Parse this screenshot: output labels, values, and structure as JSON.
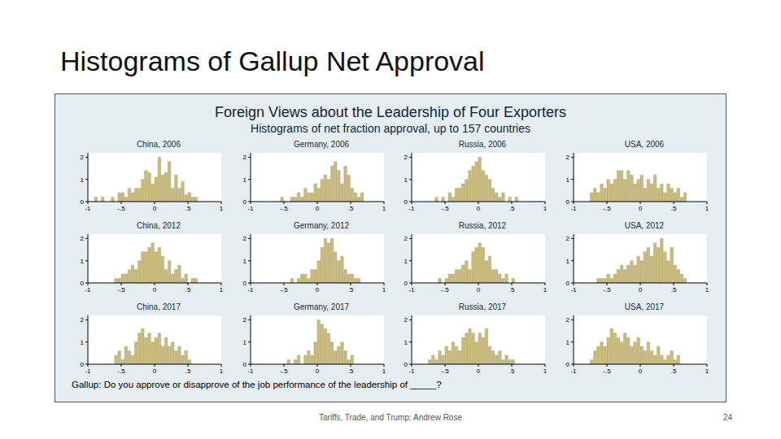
{
  "slide": {
    "title": "Histograms of Gallup Net Approval",
    "footer": "Tariffs, Trade, and Trump: Andrew Rose",
    "page": 24
  },
  "figure": {
    "title": "Foreign Views about the Leadership of Four Exporters",
    "subtitle": "Histograms of net fraction approval, up to 157 countries",
    "note": "Gallup: Do you approve or disapprove of the job performance of the leadership of _____?"
  },
  "chart_data": [
    {
      "type": "histogram",
      "title": "China, 2006",
      "bins": [
        -1,
        -0.95,
        -0.9,
        -0.85,
        -0.8,
        -0.75,
        -0.7,
        -0.65,
        -0.6,
        -0.55,
        -0.5,
        -0.45,
        -0.4,
        -0.35,
        -0.3,
        -0.25,
        -0.2,
        -0.15,
        -0.1,
        -0.05,
        0,
        0.05,
        0.1,
        0.15,
        0.2,
        0.25,
        0.3,
        0.35,
        0.4,
        0.45,
        0.5,
        0.55,
        0.6,
        0.65,
        0.7,
        0.75,
        0.8,
        0.85,
        0.9,
        0.95,
        1
      ],
      "counts": [
        0,
        0,
        0.2,
        0,
        0.2,
        0,
        0,
        0.2,
        0,
        0.4,
        0.4,
        0.2,
        0.6,
        0.4,
        0.6,
        0.6,
        1.0,
        1.4,
        1.3,
        0.8,
        1.1,
        2.0,
        1.2,
        1.3,
        1.8,
        0.6,
        1.2,
        0.6,
        0.9,
        0.3,
        0.4,
        0.2,
        0.2,
        0,
        0,
        0,
        0,
        0,
        0,
        0
      ],
      "color": "#c9bb7c",
      "xlim": [
        -1,
        1
      ],
      "xticks": [
        -1,
        {
          "value": -0.5,
          "label": "-.5"
        },
        0,
        {
          "value": 0.5,
          "label": ".5"
        },
        1
      ],
      "ylim": [
        0,
        2.2
      ],
      "yticks": [
        0,
        1,
        2
      ]
    },
    {
      "type": "histogram",
      "title": "Germany, 2006",
      "bins": [
        -1,
        -0.95,
        -0.9,
        -0.85,
        -0.8,
        -0.75,
        -0.7,
        -0.65,
        -0.6,
        -0.55,
        -0.5,
        -0.45,
        -0.4,
        -0.35,
        -0.3,
        -0.25,
        -0.2,
        -0.15,
        -0.1,
        -0.05,
        0,
        0.05,
        0.1,
        0.15,
        0.2,
        0.25,
        0.3,
        0.35,
        0.4,
        0.45,
        0.5,
        0.55,
        0.6,
        0.65,
        0.7,
        0.75,
        0.8,
        0.85,
        0.9,
        0.95,
        1
      ],
      "counts": [
        0,
        0,
        0,
        0,
        0,
        0,
        0,
        0,
        0,
        0.2,
        0,
        0,
        0.2,
        0.2,
        0.4,
        0.2,
        0.6,
        0.4,
        0.4,
        0.8,
        0.6,
        1.0,
        1.2,
        1.0,
        1.6,
        1.8,
        1.4,
        0.8,
        1.6,
        1.2,
        0.6,
        0.4,
        0.2,
        0.4,
        0,
        0,
        0,
        0,
        0,
        0
      ],
      "color": "#c9bb7c",
      "xlim": [
        -1,
        1
      ],
      "xticks": [
        -1,
        {
          "value": -0.5,
          "label": "-.5"
        },
        0,
        {
          "value": 0.5,
          "label": ".5"
        },
        1
      ],
      "ylim": [
        0,
        2.2
      ],
      "yticks": [
        0,
        1,
        2
      ]
    },
    {
      "type": "histogram",
      "title": "Russia, 2006",
      "bins": [
        -1,
        -0.95,
        -0.9,
        -0.85,
        -0.8,
        -0.75,
        -0.7,
        -0.65,
        -0.6,
        -0.55,
        -0.5,
        -0.45,
        -0.4,
        -0.35,
        -0.3,
        -0.25,
        -0.2,
        -0.15,
        -0.1,
        -0.05,
        0,
        0.05,
        0.1,
        0.15,
        0.2,
        0.25,
        0.3,
        0.35,
        0.4,
        0.45,
        0.5,
        0.55,
        0.6,
        0.65,
        0.7,
        0.75,
        0.8,
        0.85,
        0.9,
        0.95,
        1
      ],
      "counts": [
        0,
        0,
        0,
        0,
        0,
        0,
        0,
        0.2,
        0,
        0.2,
        0,
        0.4,
        0.2,
        0.6,
        0.6,
        0.8,
        1.0,
        1.4,
        1.6,
        1.8,
        2.0,
        1.4,
        1.2,
        1.0,
        0.6,
        0.4,
        0.2,
        0.4,
        0,
        0.2,
        0,
        0.2,
        0,
        0,
        0,
        0,
        0,
        0,
        0,
        0
      ],
      "color": "#c9bb7c",
      "xlim": [
        -1,
        1
      ],
      "xticks": [
        -1,
        {
          "value": -0.5,
          "label": "-.5"
        },
        0,
        {
          "value": 0.5,
          "label": ".5"
        },
        1
      ],
      "ylim": [
        0,
        2.2
      ],
      "yticks": [
        0,
        1,
        2
      ]
    },
    {
      "type": "histogram",
      "title": "USA, 2006",
      "bins": [
        -1,
        -0.95,
        -0.9,
        -0.85,
        -0.8,
        -0.75,
        -0.7,
        -0.65,
        -0.6,
        -0.55,
        -0.5,
        -0.45,
        -0.4,
        -0.35,
        -0.3,
        -0.25,
        -0.2,
        -0.15,
        -0.1,
        -0.05,
        0,
        0.05,
        0.1,
        0.15,
        0.2,
        0.25,
        0.3,
        0.35,
        0.4,
        0.45,
        0.5,
        0.55,
        0.6,
        0.65,
        0.7,
        0.75,
        0.8,
        0.85,
        0.9,
        0.95,
        1
      ],
      "counts": [
        0,
        0,
        0,
        0,
        0,
        0.4,
        0.6,
        0.4,
        0.8,
        0.6,
        1.0,
        0.8,
        1.0,
        1.4,
        1.4,
        1.0,
        1.4,
        1.2,
        0.8,
        1.0,
        1.2,
        0.6,
        1.0,
        0.8,
        1.2,
        0.6,
        0.8,
        0.4,
        0.8,
        0.6,
        0.4,
        0.6,
        0.2,
        0.4,
        0,
        0,
        0,
        0,
        0,
        0
      ],
      "color": "#c9bb7c",
      "xlim": [
        -1,
        1
      ],
      "xticks": [
        -1,
        {
          "value": -0.5,
          "label": "-.5"
        },
        0,
        {
          "value": 0.5,
          "label": ".5"
        },
        1
      ],
      "ylim": [
        0,
        2.2
      ],
      "yticks": [
        0,
        1,
        2
      ]
    },
    {
      "type": "histogram",
      "title": "China, 2012",
      "bins": [
        -1,
        -0.95,
        -0.9,
        -0.85,
        -0.8,
        -0.75,
        -0.7,
        -0.65,
        -0.6,
        -0.55,
        -0.5,
        -0.45,
        -0.4,
        -0.35,
        -0.3,
        -0.25,
        -0.2,
        -0.15,
        -0.1,
        -0.05,
        0,
        0.05,
        0.1,
        0.15,
        0.2,
        0.25,
        0.3,
        0.35,
        0.4,
        0.45,
        0.5,
        0.55,
        0.6,
        0.65,
        0.7,
        0.75,
        0.8,
        0.85,
        0.9,
        0.95,
        1
      ],
      "counts": [
        0,
        0,
        0,
        0,
        0,
        0,
        0,
        0,
        0.2,
        0.2,
        0.4,
        0.4,
        0.6,
        0.8,
        0.6,
        1.0,
        1.4,
        1.4,
        1.6,
        1.8,
        1.4,
        1.6,
        1.2,
        0.6,
        1.0,
        0.4,
        0.6,
        0.8,
        0.2,
        0.4,
        0,
        0.2,
        0.2,
        0,
        0,
        0,
        0,
        0,
        0,
        0
      ],
      "color": "#c9bb7c",
      "xlim": [
        -1,
        1
      ],
      "xticks": [
        -1,
        {
          "value": -0.5,
          "label": "-.5"
        },
        0,
        {
          "value": 0.5,
          "label": ".5"
        },
        1
      ],
      "ylim": [
        0,
        2.2
      ],
      "yticks": [
        0,
        1,
        2
      ]
    },
    {
      "type": "histogram",
      "title": "Germany, 2012",
      "bins": [
        -1,
        -0.95,
        -0.9,
        -0.85,
        -0.8,
        -0.75,
        -0.7,
        -0.65,
        -0.6,
        -0.55,
        -0.5,
        -0.45,
        -0.4,
        -0.35,
        -0.3,
        -0.25,
        -0.2,
        -0.15,
        -0.1,
        -0.05,
        0,
        0.05,
        0.1,
        0.15,
        0.2,
        0.25,
        0.3,
        0.35,
        0.4,
        0.45,
        0.5,
        0.55,
        0.6,
        0.65,
        0.7,
        0.75,
        0.8,
        0.85,
        0.9,
        0.95,
        1
      ],
      "counts": [
        0,
        0,
        0,
        0,
        0,
        0,
        0,
        0,
        0,
        0,
        0,
        0,
        0.2,
        0,
        0.2,
        0.4,
        0.4,
        0.2,
        0.6,
        0.6,
        1.0,
        1.6,
        2.0,
        1.8,
        2.0,
        1.4,
        1.0,
        1.2,
        0.6,
        0.4,
        0.4,
        0.2,
        0.2,
        0,
        0,
        0,
        0,
        0,
        0,
        0
      ],
      "color": "#c9bb7c",
      "xlim": [
        -1,
        1
      ],
      "xticks": [
        -1,
        {
          "value": -0.5,
          "label": "-.5"
        },
        0,
        {
          "value": 0.5,
          "label": ".5"
        },
        1
      ],
      "ylim": [
        0,
        2.2
      ],
      "yticks": [
        0,
        1,
        2
      ]
    },
    {
      "type": "histogram",
      "title": "Russia, 2012",
      "bins": [
        -1,
        -0.95,
        -0.9,
        -0.85,
        -0.8,
        -0.75,
        -0.7,
        -0.65,
        -0.6,
        -0.55,
        -0.5,
        -0.45,
        -0.4,
        -0.35,
        -0.3,
        -0.25,
        -0.2,
        -0.15,
        -0.1,
        -0.05,
        0,
        0.05,
        0.1,
        0.15,
        0.2,
        0.25,
        0.3,
        0.35,
        0.4,
        0.45,
        0.5,
        0.55,
        0.6,
        0.65,
        0.7,
        0.75,
        0.8,
        0.85,
        0.9,
        0.95,
        1
      ],
      "counts": [
        0,
        0,
        0,
        0,
        0,
        0,
        0,
        0,
        0.2,
        0,
        0.2,
        0.4,
        0.4,
        0.6,
        0.6,
        0.8,
        1.0,
        0.6,
        1.4,
        1.6,
        1.8,
        1.6,
        1.0,
        1.2,
        0.6,
        0.6,
        0.4,
        0.2,
        0.4,
        0,
        0.2,
        0,
        0,
        0,
        0,
        0,
        0,
        0,
        0,
        0
      ],
      "color": "#c9bb7c",
      "xlim": [
        -1,
        1
      ],
      "xticks": [
        -1,
        {
          "value": -0.5,
          "label": "-.5"
        },
        0,
        {
          "value": 0.5,
          "label": ".5"
        },
        1
      ],
      "ylim": [
        0,
        2.2
      ],
      "yticks": [
        0,
        1,
        2
      ]
    },
    {
      "type": "histogram",
      "title": "USA, 2012",
      "bins": [
        -1,
        -0.95,
        -0.9,
        -0.85,
        -0.8,
        -0.75,
        -0.7,
        -0.65,
        -0.6,
        -0.55,
        -0.5,
        -0.45,
        -0.4,
        -0.35,
        -0.3,
        -0.25,
        -0.2,
        -0.15,
        -0.1,
        -0.05,
        0,
        0.05,
        0.1,
        0.15,
        0.2,
        0.25,
        0.3,
        0.35,
        0.4,
        0.45,
        0.5,
        0.55,
        0.6,
        0.65,
        0.7,
        0.75,
        0.8,
        0.85,
        0.9,
        0.95,
        1
      ],
      "counts": [
        0,
        0,
        0,
        0,
        0,
        0,
        0,
        0.2,
        0.2,
        0.2,
        0.4,
        0.2,
        0.4,
        0.6,
        0.8,
        0.6,
        0.8,
        1.0,
        0.8,
        1.2,
        1.0,
        1.4,
        1.6,
        1.2,
        1.8,
        1.6,
        2.0,
        1.4,
        1.0,
        1.6,
        0.8,
        0.6,
        0.4,
        0.2,
        0,
        0,
        0,
        0,
        0,
        0
      ],
      "color": "#c9bb7c",
      "xlim": [
        -1,
        1
      ],
      "xticks": [
        -1,
        {
          "value": -0.5,
          "label": "-.5"
        },
        0,
        {
          "value": 0.5,
          "label": ".5"
        },
        1
      ],
      "ylim": [
        0,
        2.2
      ],
      "yticks": [
        0,
        1,
        2
      ]
    },
    {
      "type": "histogram",
      "title": "China, 2017",
      "bins": [
        -1,
        -0.95,
        -0.9,
        -0.85,
        -0.8,
        -0.75,
        -0.7,
        -0.65,
        -0.6,
        -0.55,
        -0.5,
        -0.45,
        -0.4,
        -0.35,
        -0.3,
        -0.25,
        -0.2,
        -0.15,
        -0.1,
        -0.05,
        0,
        0.05,
        0.1,
        0.15,
        0.2,
        0.25,
        0.3,
        0.35,
        0.4,
        0.45,
        0.5,
        0.55,
        0.6,
        0.65,
        0.7,
        0.75,
        0.8,
        0.85,
        0.9,
        0.95,
        1
      ],
      "counts": [
        0,
        0,
        0,
        0,
        0,
        0,
        0,
        0,
        0.4,
        0.6,
        0.2,
        0.8,
        0.6,
        0.4,
        1.0,
        1.4,
        1.6,
        1.2,
        1.4,
        1.0,
        1.2,
        1.4,
        0.8,
        1.2,
        0.8,
        1.0,
        0.6,
        0.8,
        0.4,
        0.6,
        0.2,
        0,
        0,
        0,
        0,
        0,
        0,
        0,
        0,
        0
      ],
      "color": "#c9bb7c",
      "xlim": [
        -1,
        1
      ],
      "xticks": [
        -1,
        {
          "value": -0.5,
          "label": "-.5"
        },
        0,
        {
          "value": 0.5,
          "label": ".5"
        },
        1
      ],
      "ylim": [
        0,
        2.2
      ],
      "yticks": [
        0,
        1,
        2
      ]
    },
    {
      "type": "histogram",
      "title": "Germany, 2017",
      "bins": [
        -1,
        -0.95,
        -0.9,
        -0.85,
        -0.8,
        -0.75,
        -0.7,
        -0.65,
        -0.6,
        -0.55,
        -0.5,
        -0.45,
        -0.4,
        -0.35,
        -0.3,
        -0.25,
        -0.2,
        -0.15,
        -0.1,
        -0.05,
        0,
        0.05,
        0.1,
        0.15,
        0.2,
        0.25,
        0.3,
        0.35,
        0.4,
        0.45,
        0.5,
        0.55,
        0.6,
        0.65,
        0.7,
        0.75,
        0.8,
        0.85,
        0.9,
        0.95,
        1
      ],
      "counts": [
        0,
        0,
        0,
        0,
        0,
        0,
        0,
        0,
        0,
        0,
        0,
        0.2,
        0,
        0.2,
        0.4,
        0,
        0.4,
        0.6,
        0.4,
        1.0,
        2.0,
        1.8,
        1.6,
        1.4,
        1.0,
        0.6,
        0.8,
        1.0,
        0.6,
        0.2,
        0.4,
        0,
        0,
        0,
        0,
        0,
        0,
        0,
        0,
        0
      ],
      "color": "#c9bb7c",
      "xlim": [
        -1,
        1
      ],
      "xticks": [
        -1,
        {
          "value": -0.5,
          "label": "-.5"
        },
        0,
        {
          "value": 0.5,
          "label": ".5"
        },
        1
      ],
      "ylim": [
        0,
        2.2
      ],
      "yticks": [
        0,
        1,
        2
      ]
    },
    {
      "type": "histogram",
      "title": "Russia, 2017",
      "bins": [
        -1,
        -0.95,
        -0.9,
        -0.85,
        -0.8,
        -0.75,
        -0.7,
        -0.65,
        -0.6,
        -0.55,
        -0.5,
        -0.45,
        -0.4,
        -0.35,
        -0.3,
        -0.25,
        -0.2,
        -0.15,
        -0.1,
        -0.05,
        0,
        0.05,
        0.1,
        0.15,
        0.2,
        0.25,
        0.3,
        0.35,
        0.4,
        0.45,
        0.5,
        0.55,
        0.6,
        0.65,
        0.7,
        0.75,
        0.8,
        0.85,
        0.9,
        0.95,
        1
      ],
      "counts": [
        0,
        0,
        0,
        0,
        0,
        0.2,
        0.4,
        0.2,
        0.6,
        0.4,
        0.8,
        0.6,
        1.0,
        0.8,
        0.6,
        1.2,
        1.4,
        1.6,
        1.4,
        1.0,
        1.4,
        1.2,
        1.6,
        0.8,
        0.6,
        0.4,
        0.6,
        0.2,
        0.4,
        0.2,
        0.2,
        0,
        0,
        0,
        0,
        0,
        0,
        0,
        0,
        0
      ],
      "color": "#c9bb7c",
      "xlim": [
        -1,
        1
      ],
      "xticks": [
        -1,
        {
          "value": -0.5,
          "label": "-.5"
        },
        0,
        {
          "value": 0.5,
          "label": ".5"
        },
        1
      ],
      "ylim": [
        0,
        2.2
      ],
      "yticks": [
        0,
        1,
        2
      ]
    },
    {
      "type": "histogram",
      "title": "USA, 2017",
      "bins": [
        -1,
        -0.95,
        -0.9,
        -0.85,
        -0.8,
        -0.75,
        -0.7,
        -0.65,
        -0.6,
        -0.55,
        -0.5,
        -0.45,
        -0.4,
        -0.35,
        -0.3,
        -0.25,
        -0.2,
        -0.15,
        -0.1,
        -0.05,
        0,
        0.05,
        0.1,
        0.15,
        0.2,
        0.25,
        0.3,
        0.35,
        0.4,
        0.45,
        0.5,
        0.55,
        0.6,
        0.65,
        0.7,
        0.75,
        0.8,
        0.85,
        0.9,
        0.95,
        1
      ],
      "counts": [
        0,
        0,
        0,
        0,
        0,
        0.2,
        0.6,
        0.8,
        1.0,
        0.8,
        1.2,
        1.6,
        1.4,
        1.2,
        1.0,
        1.4,
        1.2,
        0.8,
        1.0,
        1.2,
        0.8,
        0.6,
        1.0,
        0.6,
        0.4,
        0.8,
        0.4,
        0.2,
        0.4,
        0.6,
        0.2,
        0.4,
        0,
        0,
        0,
        0,
        0,
        0,
        0,
        0
      ],
      "color": "#c9bb7c",
      "xlim": [
        -1,
        1
      ],
      "xticks": [
        -1,
        {
          "value": -0.5,
          "label": "-.5"
        },
        0,
        {
          "value": 0.5,
          "label": ".5"
        },
        1
      ],
      "ylim": [
        0,
        2.2
      ],
      "yticks": [
        0,
        1,
        2
      ]
    }
  ]
}
